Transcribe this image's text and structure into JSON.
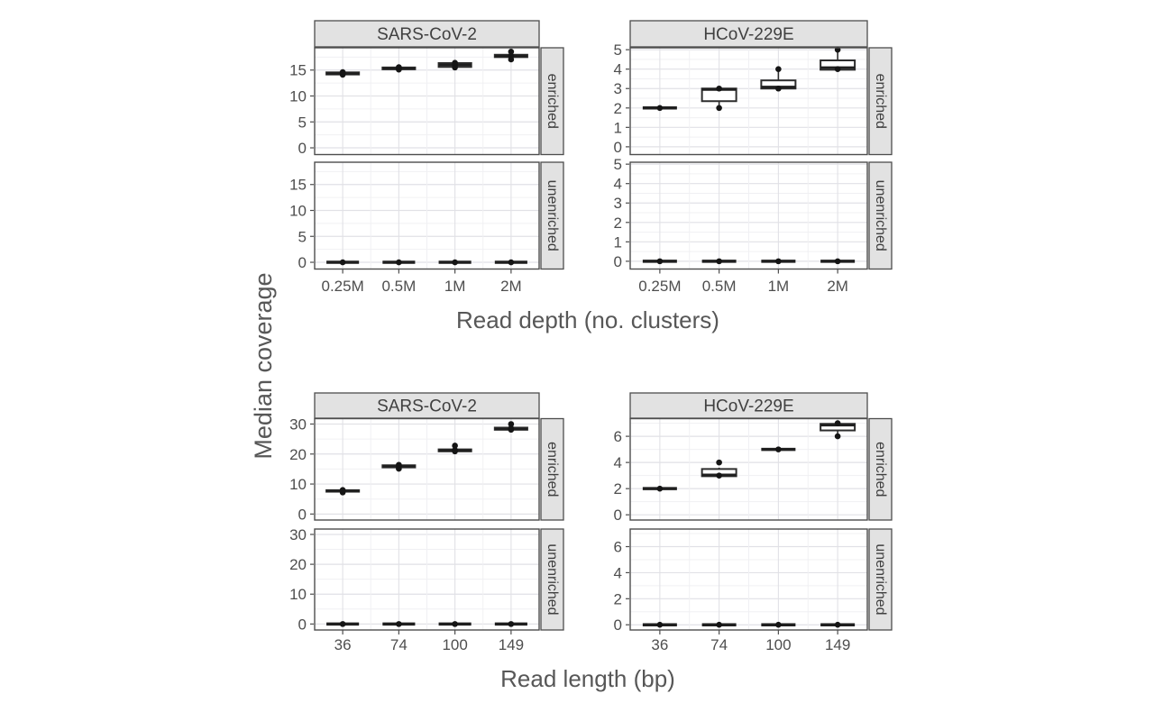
{
  "ylabel": "Median coverage",
  "colors": {
    "strip_bg": "#e2e2e2",
    "strip_border": "#4d4d4d",
    "strip_text": "#404040",
    "panel_bg": "#ffffff",
    "panel_border": "#4d4d4d",
    "grid_major": "#e1e1e6",
    "grid_minor": "#f0f0f3",
    "tick_text": "#4e4e4e",
    "title_text": "#575757",
    "box_stroke": "#2d2d2d",
    "median_stroke": "#1f1f1f",
    "point_fill": "#151515"
  },
  "chart_data": [
    {
      "type": "boxplot",
      "xlabel": "Read depth (no. clusters)",
      "ylabel": "Median coverage",
      "categories": [
        "0.25M",
        "0.5M",
        "1M",
        "2M"
      ],
      "row_facets": [
        "enriched",
        "unenriched"
      ],
      "col_facets": [
        {
          "label": "SARS-CoV-2",
          "yticks": [
            0,
            5,
            10,
            15
          ],
          "minor_step": 2.5,
          "ylim": [
            -1.3,
            19.3
          ],
          "rows": [
            {
              "label": "enriched",
              "groups": [
                {
                  "cat": "0.25M",
                  "lo": 13.8,
                  "q1": 14.15,
                  "med": 14.35,
                  "q3": 14.55,
                  "hi": 14.8,
                  "pts": [
                    14.1,
                    14.35,
                    14.6
                  ]
                },
                {
                  "cat": "0.5M",
                  "lo": 14.9,
                  "q1": 15.15,
                  "med": 15.3,
                  "q3": 15.5,
                  "hi": 15.7,
                  "pts": [
                    15.1,
                    15.3,
                    15.55
                  ]
                },
                {
                  "cat": "1M",
                  "lo": 15.2,
                  "q1": 15.6,
                  "med": 16.0,
                  "q3": 16.35,
                  "hi": 16.6,
                  "pts": [
                    15.5,
                    15.95,
                    16.4
                  ]
                },
                {
                  "cat": "2M",
                  "lo": 16.95,
                  "q1": 17.5,
                  "med": 17.7,
                  "q3": 17.95,
                  "hi": 18.1,
                  "pts": [
                    17.05,
                    17.75,
                    18.55
                  ]
                }
              ]
            },
            {
              "label": "unenriched",
              "groups": [
                {
                  "cat": "0.25M",
                  "lo": 0,
                  "q1": 0,
                  "med": 0,
                  "q3": 0,
                  "hi": 0,
                  "pts": [
                    0
                  ]
                },
                {
                  "cat": "0.5M",
                  "lo": 0,
                  "q1": 0,
                  "med": 0,
                  "q3": 0,
                  "hi": 0,
                  "pts": [
                    0
                  ]
                },
                {
                  "cat": "1M",
                  "lo": 0,
                  "q1": 0,
                  "med": 0,
                  "q3": 0,
                  "hi": 0,
                  "pts": [
                    0
                  ]
                },
                {
                  "cat": "2M",
                  "lo": 0,
                  "q1": 0,
                  "med": 0,
                  "q3": 0,
                  "hi": 0,
                  "pts": [
                    0
                  ]
                }
              ]
            }
          ]
        },
        {
          "label": "HCoV-229E",
          "yticks": [
            0,
            1,
            2,
            3,
            4,
            5
          ],
          "minor_step": 0.5,
          "ylim": [
            -0.4,
            5.1
          ],
          "rows": [
            {
              "label": "enriched",
              "groups": [
                {
                  "cat": "0.25M",
                  "lo": 1.95,
                  "q1": 1.98,
                  "med": 2.0,
                  "q3": 2.02,
                  "hi": 2.05,
                  "pts": [
                    2.0
                  ]
                },
                {
                  "cat": "0.5M",
                  "lo": 2.0,
                  "q1": 2.35,
                  "med": 2.95,
                  "q3": 3.0,
                  "hi": 3.05,
                  "pts": [
                    2.0,
                    3.0
                  ]
                },
                {
                  "cat": "1M",
                  "lo": 2.95,
                  "q1": 3.0,
                  "med": 3.08,
                  "q3": 3.42,
                  "hi": 4.0,
                  "pts": [
                    3.0,
                    4.0
                  ]
                },
                {
                  "cat": "2M",
                  "lo": 3.9,
                  "q1": 3.97,
                  "med": 4.08,
                  "q3": 4.45,
                  "hi": 5.0,
                  "pts": [
                    4.0,
                    5.0
                  ]
                }
              ]
            },
            {
              "label": "unenriched",
              "groups": [
                {
                  "cat": "0.25M",
                  "lo": 0,
                  "q1": 0,
                  "med": 0,
                  "q3": 0,
                  "hi": 0,
                  "pts": [
                    0
                  ]
                },
                {
                  "cat": "0.5M",
                  "lo": 0,
                  "q1": 0,
                  "med": 0,
                  "q3": 0,
                  "hi": 0,
                  "pts": [
                    0
                  ]
                },
                {
                  "cat": "1M",
                  "lo": 0,
                  "q1": 0,
                  "med": 0,
                  "q3": 0,
                  "hi": 0,
                  "pts": [
                    0
                  ]
                },
                {
                  "cat": "2M",
                  "lo": 0,
                  "q1": 0,
                  "med": 0,
                  "q3": 0,
                  "hi": 0,
                  "pts": [
                    0
                  ]
                }
              ]
            }
          ]
        }
      ]
    },
    {
      "type": "boxplot",
      "xlabel": "Read length (bp)",
      "ylabel": "Median coverage",
      "categories": [
        "36",
        "74",
        "100",
        "149"
      ],
      "row_facets": [
        "enriched",
        "unenriched"
      ],
      "col_facets": [
        {
          "label": "SARS-CoV-2",
          "yticks": [
            0,
            10,
            20,
            30
          ],
          "minor_step": 5,
          "ylim": [
            -2.0,
            31.8
          ],
          "rows": [
            {
              "label": "enriched",
              "groups": [
                {
                  "cat": "36",
                  "lo": 7.0,
                  "q1": 7.45,
                  "med": 7.7,
                  "q3": 7.95,
                  "hi": 8.1,
                  "pts": [
                    7.2,
                    7.7,
                    8.0
                  ]
                },
                {
                  "cat": "74",
                  "lo": 14.9,
                  "q1": 15.55,
                  "med": 15.95,
                  "q3": 16.25,
                  "hi": 16.6,
                  "pts": [
                    15.1,
                    15.9,
                    16.4
                  ]
                },
                {
                  "cat": "100",
                  "lo": 20.6,
                  "q1": 20.9,
                  "med": 21.15,
                  "q3": 21.55,
                  "hi": 21.8,
                  "pts": [
                    20.9,
                    21.3,
                    22.8
                  ]
                },
                {
                  "cat": "149",
                  "lo": 27.8,
                  "q1": 28.1,
                  "med": 28.35,
                  "q3": 28.8,
                  "hi": 29.1,
                  "pts": [
                    28.1,
                    28.6,
                    30.0
                  ]
                }
              ]
            },
            {
              "label": "unenriched",
              "groups": [
                {
                  "cat": "36",
                  "lo": 0,
                  "q1": 0,
                  "med": 0,
                  "q3": 0,
                  "hi": 0,
                  "pts": [
                    0
                  ]
                },
                {
                  "cat": "74",
                  "lo": 0,
                  "q1": 0,
                  "med": 0,
                  "q3": 0,
                  "hi": 0,
                  "pts": [
                    0
                  ]
                },
                {
                  "cat": "100",
                  "lo": 0,
                  "q1": 0,
                  "med": 0,
                  "q3": 0,
                  "hi": 0,
                  "pts": [
                    0
                  ]
                },
                {
                  "cat": "149",
                  "lo": 0,
                  "q1": 0,
                  "med": 0,
                  "q3": 0,
                  "hi": 0,
                  "pts": [
                    0
                  ]
                }
              ]
            }
          ]
        },
        {
          "label": "HCoV-229E",
          "yticks": [
            0,
            2,
            4,
            6
          ],
          "minor_step": 1,
          "ylim": [
            -0.4,
            7.35
          ],
          "rows": [
            {
              "label": "enriched",
              "groups": [
                {
                  "cat": "36",
                  "lo": 1.95,
                  "q1": 1.98,
                  "med": 2.0,
                  "q3": 2.02,
                  "hi": 2.05,
                  "pts": [
                    2.0
                  ]
                },
                {
                  "cat": "74",
                  "lo": 2.9,
                  "q1": 2.95,
                  "med": 3.05,
                  "q3": 3.5,
                  "hi": 3.6,
                  "pts": [
                    3.0,
                    4.0
                  ]
                },
                {
                  "cat": "100",
                  "lo": 4.95,
                  "q1": 4.98,
                  "med": 5.0,
                  "q3": 5.02,
                  "hi": 5.05,
                  "pts": [
                    5.0
                  ]
                },
                {
                  "cat": "149",
                  "lo": 5.95,
                  "q1": 6.45,
                  "med": 6.85,
                  "q3": 6.95,
                  "hi": 7.1,
                  "pts": [
                    6.0,
                    7.0
                  ]
                }
              ]
            },
            {
              "label": "unenriched",
              "groups": [
                {
                  "cat": "36",
                  "lo": 0,
                  "q1": 0,
                  "med": 0,
                  "q3": 0,
                  "hi": 0,
                  "pts": [
                    0
                  ]
                },
                {
                  "cat": "74",
                  "lo": 0,
                  "q1": 0,
                  "med": 0,
                  "q3": 0,
                  "hi": 0,
                  "pts": [
                    0
                  ]
                },
                {
                  "cat": "100",
                  "lo": 0,
                  "q1": 0,
                  "med": 0,
                  "q3": 0,
                  "hi": 0,
                  "pts": [
                    0
                  ]
                },
                {
                  "cat": "149",
                  "lo": 0,
                  "q1": 0,
                  "med": 0,
                  "q3": 0,
                  "hi": 0,
                  "pts": [
                    0
                  ]
                }
              ]
            }
          ]
        }
      ]
    }
  ]
}
